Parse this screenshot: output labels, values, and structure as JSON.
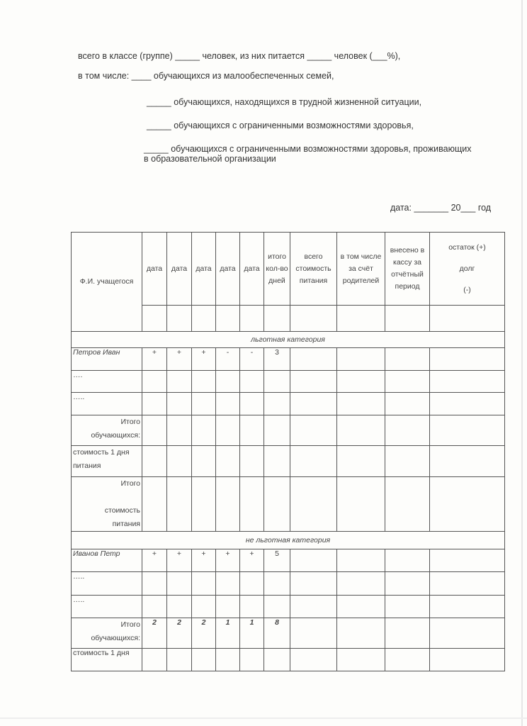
{
  "header_lines": {
    "line1": "всего в классе (группе) _____ человек, из них питается _____ человек (___%),",
    "line2": "в том числе: ____ обучающихся из малообеспеченных семей,",
    "line3": "_____ обучающихся, находящихся в трудной жизненной ситуации,",
    "line4": "_____ обучающихся с ограниченными возможностями здоровья,",
    "line5a": "_____ обучающихся с ограниченными возможностями здоровья, проживающих",
    "line5b": "в образовательной организации",
    "date": "дата: _______ 20___ год"
  },
  "table": {
    "headers": {
      "name": "Ф.И. учащегося",
      "dates": [
        "дата",
        "дата",
        "дата",
        "дата",
        "дата"
      ],
      "days": "итого кол-во дней",
      "total_cost": "всего стоимость питания",
      "parents": "в том числе за счёт родителей",
      "paid": "внесено в кассу за отчётный период",
      "balance_plus": "остаток (+)",
      "balance_debt": "долг",
      "balance_minus": "(-)"
    },
    "section1": {
      "title": "льготная категория",
      "student": {
        "name": "Петров Иван",
        "marks": [
          "+",
          "+",
          "+",
          "-",
          "-"
        ],
        "days": "3"
      },
      "dots1": "….",
      "dots2": "…..",
      "total_a": "Итого",
      "total_b": "обучающихся:",
      "day_cost_a": "стоимость 1 дня",
      "day_cost_b": "питания",
      "total_cost_a": "Итого",
      "total_cost_b": "стоимость",
      "total_cost_c": "питания"
    },
    "section2": {
      "title": "не льготная категория",
      "student": {
        "name": "Иванов Петр",
        "marks": [
          "+",
          "+",
          "+",
          "+",
          "+"
        ],
        "days": "5"
      },
      "dots1": "…..",
      "dots2": "…..",
      "total_a": "Итого",
      "total_b": "обучающихся:",
      "totals": [
        "2",
        "2",
        "2",
        "1",
        "1"
      ],
      "totals_days": "8",
      "day_cost": "стоимость 1 дня"
    }
  }
}
